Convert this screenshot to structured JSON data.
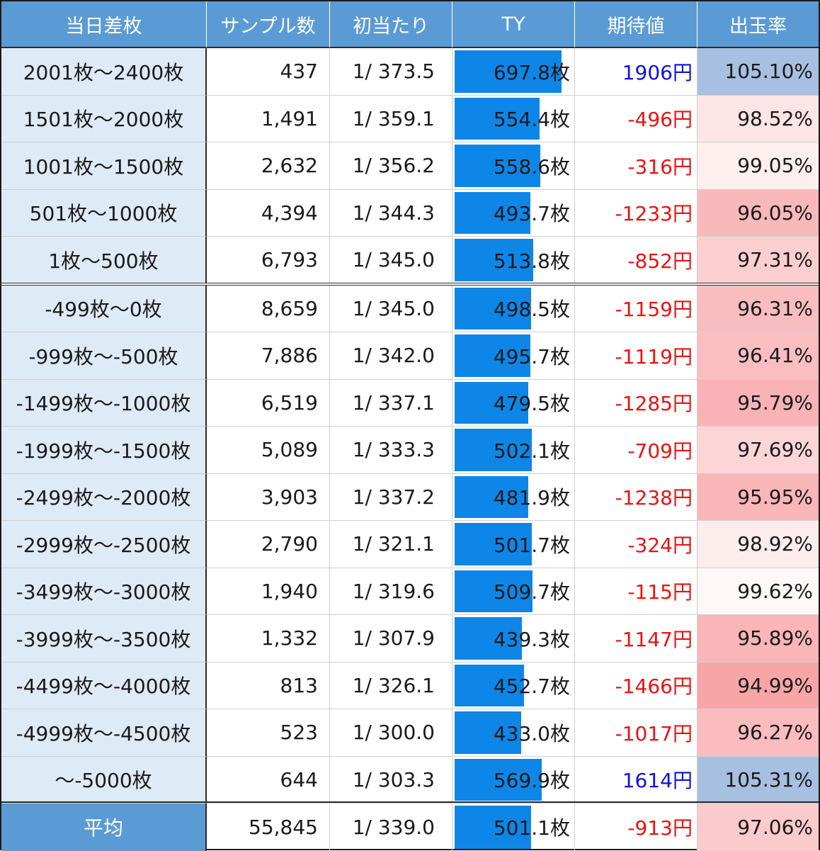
{
  "chart_data": {
    "type": "table",
    "columns": [
      "当日差枚",
      "サンプル数",
      "初当たり",
      "TY",
      "期待値",
      "出玉率"
    ],
    "rows": [
      {
        "range": "2001枚～2400枚",
        "samples": "437",
        "first_hit": "1/ 373.5",
        "ty": 697.8,
        "ty_label": "697.8枚",
        "expected": "1906円",
        "expected_sign": "pos",
        "payout": 105.1,
        "payout_label": "105.10%"
      },
      {
        "range": "1501枚～2000枚",
        "samples": "1,491",
        "first_hit": "1/ 359.1",
        "ty": 554.4,
        "ty_label": "554.4枚",
        "expected": "-496円",
        "expected_sign": "neg",
        "payout": 98.52,
        "payout_label": "98.52%"
      },
      {
        "range": "1001枚～1500枚",
        "samples": "2,632",
        "first_hit": "1/ 356.2",
        "ty": 558.6,
        "ty_label": "558.6枚",
        "expected": "-316円",
        "expected_sign": "neg",
        "payout": 99.05,
        "payout_label": "99.05%"
      },
      {
        "range": "501枚～1000枚",
        "samples": "4,394",
        "first_hit": "1/ 344.3",
        "ty": 493.7,
        "ty_label": "493.7枚",
        "expected": "-1233円",
        "expected_sign": "neg",
        "payout": 96.05,
        "payout_label": "96.05%"
      },
      {
        "range": "1枚～500枚",
        "samples": "6,793",
        "first_hit": "1/ 345.0",
        "ty": 513.8,
        "ty_label": "513.8枚",
        "expected": "-852円",
        "expected_sign": "neg",
        "payout": 97.31,
        "payout_label": "97.31%"
      },
      {
        "range": "-499枚～0枚",
        "samples": "8,659",
        "first_hit": "1/ 345.0",
        "ty": 498.5,
        "ty_label": "498.5枚",
        "expected": "-1159円",
        "expected_sign": "neg",
        "payout": 96.31,
        "payout_label": "96.31%"
      },
      {
        "range": "-999枚～-500枚",
        "samples": "7,886",
        "first_hit": "1/ 342.0",
        "ty": 495.7,
        "ty_label": "495.7枚",
        "expected": "-1119円",
        "expected_sign": "neg",
        "payout": 96.41,
        "payout_label": "96.41%"
      },
      {
        "range": "-1499枚～-1000枚",
        "samples": "6,519",
        "first_hit": "1/ 337.1",
        "ty": 479.5,
        "ty_label": "479.5枚",
        "expected": "-1285円",
        "expected_sign": "neg",
        "payout": 95.79,
        "payout_label": "95.79%"
      },
      {
        "range": "-1999枚～-1500枚",
        "samples": "5,089",
        "first_hit": "1/ 333.3",
        "ty": 502.1,
        "ty_label": "502.1枚",
        "expected": "-709円",
        "expected_sign": "neg",
        "payout": 97.69,
        "payout_label": "97.69%"
      },
      {
        "range": "-2499枚～-2000枚",
        "samples": "3,903",
        "first_hit": "1/ 337.2",
        "ty": 481.9,
        "ty_label": "481.9枚",
        "expected": "-1238円",
        "expected_sign": "neg",
        "payout": 95.95,
        "payout_label": "95.95%"
      },
      {
        "range": "-2999枚～-2500枚",
        "samples": "2,790",
        "first_hit": "1/ 321.1",
        "ty": 501.7,
        "ty_label": "501.7枚",
        "expected": "-324円",
        "expected_sign": "neg",
        "payout": 98.92,
        "payout_label": "98.92%"
      },
      {
        "range": "-3499枚～-3000枚",
        "samples": "1,940",
        "first_hit": "1/ 319.6",
        "ty": 509.7,
        "ty_label": "509.7枚",
        "expected": "-115円",
        "expected_sign": "neg",
        "payout": 99.62,
        "payout_label": "99.62%"
      },
      {
        "range": "-3999枚～-3500枚",
        "samples": "1,332",
        "first_hit": "1/ 307.9",
        "ty": 439.3,
        "ty_label": "439.3枚",
        "expected": "-1147円",
        "expected_sign": "neg",
        "payout": 95.89,
        "payout_label": "95.89%"
      },
      {
        "range": "-4499枚～-4000枚",
        "samples": "813",
        "first_hit": "1/ 326.1",
        "ty": 452.7,
        "ty_label": "452.7枚",
        "expected": "-1466円",
        "expected_sign": "neg",
        "payout": 94.99,
        "payout_label": "94.99%"
      },
      {
        "range": "-4999枚～-4500枚",
        "samples": "523",
        "first_hit": "1/ 300.0",
        "ty": 433.0,
        "ty_label": "433.0枚",
        "expected": "-1017円",
        "expected_sign": "neg",
        "payout": 96.27,
        "payout_label": "96.27%"
      },
      {
        "range": "～-5000枚",
        "samples": "644",
        "first_hit": "1/ 303.3",
        "ty": 569.9,
        "ty_label": "569.9枚",
        "expected": "1614円",
        "expected_sign": "pos",
        "payout": 105.31,
        "payout_label": "105.31%"
      }
    ],
    "average": {
      "range": "平均",
      "samples": "55,845",
      "first_hit": "1/ 339.0",
      "ty": 501.1,
      "ty_label": "501.1枚",
      "expected": "-913円",
      "expected_sign": "neg",
      "payout": 97.06,
      "payout_label": "97.06%"
    },
    "ty_max": 697.8,
    "colors": {
      "header_bg": "#5b9bd5",
      "range_bg": "#deeaf6",
      "ty_bar": "#0e86e8",
      "expected_pos": "#1010e0",
      "expected_neg": "#ee1111",
      "payout_high": "#a7bfe0",
      "payout_low": "#f8a5a8"
    }
  }
}
